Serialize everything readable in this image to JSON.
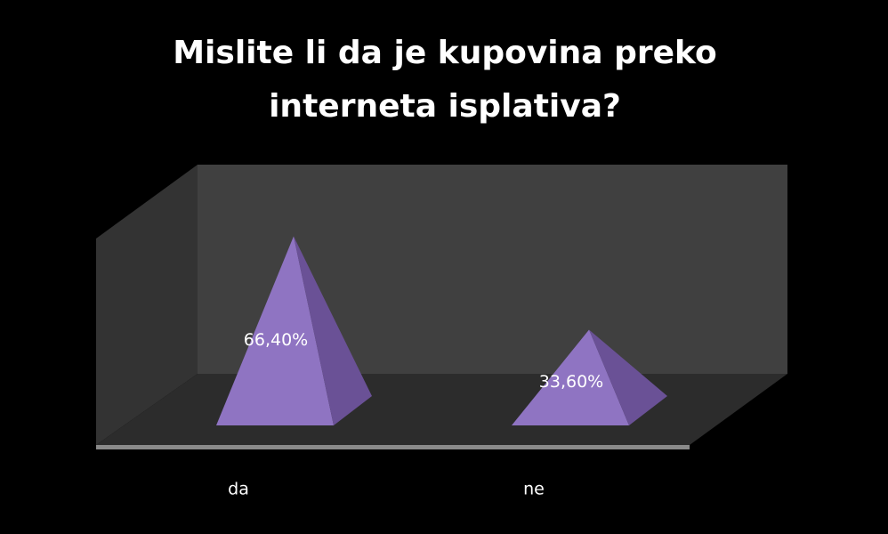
{
  "chart_data": {
    "type": "pyramid",
    "title": "Mislite li da je kupovina preko interneta isplativa?",
    "categories": [
      "da",
      "ne"
    ],
    "values": [
      66.4,
      33.6
    ],
    "value_labels": [
      "66,40%",
      "33,60%"
    ],
    "color": "#8f74c2"
  }
}
